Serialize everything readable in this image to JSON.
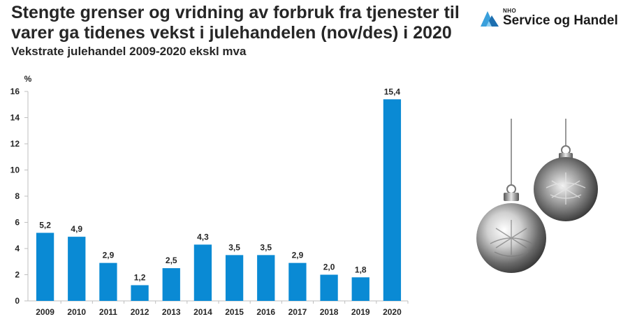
{
  "header": {
    "title_line1": "Stengte grenser og vridning av forbruk fra tjenester til",
    "title_line2": "varer ga tidenes vekst i julehandelen (nov/des) i 2020",
    "subtitle": "Vekstrate julehandel 2009-2020 ekskl mva"
  },
  "logo": {
    "small": "NHO",
    "name": "Service og Handel",
    "icon": "nho-logo-icon"
  },
  "decoration": {
    "icon": "christmas-ornaments-icon"
  },
  "colors": {
    "bar": "#0a8ad4",
    "logo_blue": "#3aa0dc"
  },
  "chart_data": {
    "type": "bar",
    "title": "Vekstrate julehandel 2009-2020 ekskl mva",
    "ylabel": "%",
    "xlabel": "",
    "categories": [
      "2009",
      "2010",
      "2011",
      "2012",
      "2013",
      "2014",
      "2015",
      "2016",
      "2017",
      "2018",
      "2019",
      "2020"
    ],
    "values": [
      5.2,
      4.9,
      2.9,
      1.2,
      2.5,
      4.3,
      3.5,
      3.5,
      2.9,
      2.0,
      1.8,
      15.4
    ],
    "data_labels": [
      "5,2",
      "4,9",
      "2,9",
      "1,2",
      "2,5",
      "4,3",
      "3,5",
      "3,5",
      "2,9",
      "2,0",
      "1,8",
      "15,4"
    ],
    "ylim": [
      0,
      16
    ],
    "yticks": [
      "0",
      "2",
      "4",
      "6",
      "8",
      "10",
      "12",
      "14",
      "16"
    ],
    "grid": false,
    "legend": "none"
  }
}
